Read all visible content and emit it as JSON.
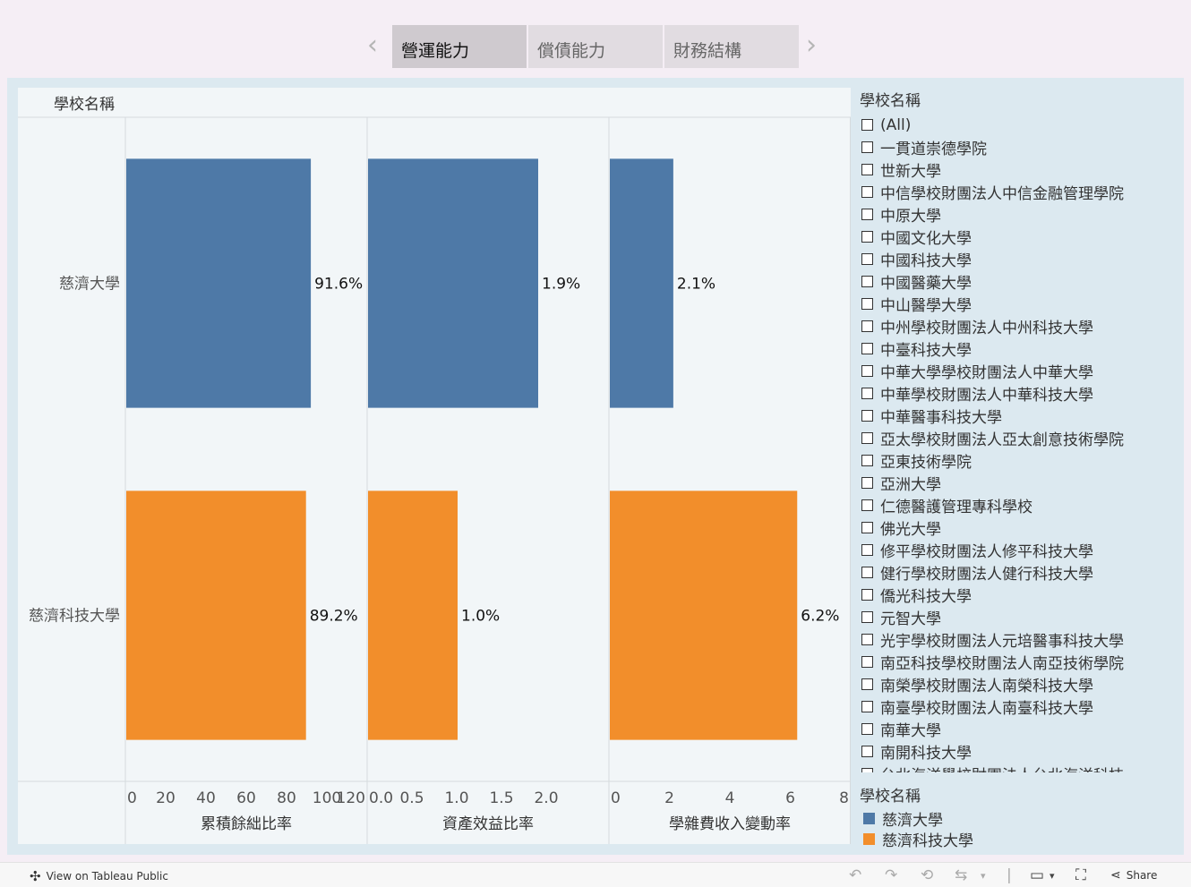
{
  "tabs": {
    "prev_icon": "chevron-left-icon",
    "next_icon": "chevron-right-icon",
    "items": [
      {
        "label": "營運能力",
        "active": true
      },
      {
        "label": "償債能力",
        "active": false
      },
      {
        "label": "財務結構",
        "active": false
      }
    ]
  },
  "chart_data": {
    "type": "bar",
    "orientation": "horizontal",
    "row_header": "學校名稱",
    "categories": [
      "慈濟大學",
      "慈濟科技大學"
    ],
    "colors": {
      "慈濟大學": "#4e79a7",
      "慈濟科技大學": "#f28e2b"
    },
    "panels": [
      {
        "xlabel": "累積餘絀比率",
        "xlim": [
          0,
          120
        ],
        "ticks": [
          "0",
          "20",
          "40",
          "60",
          "80",
          "100",
          "120"
        ],
        "values": [
          91.6,
          89.2
        ],
        "labels": [
          "91.6%",
          "89.2%"
        ]
      },
      {
        "xlabel": "資產效益比率",
        "xlim": [
          0,
          2.7
        ],
        "ticks": [
          "0.0",
          "0.5",
          "1.0",
          "1.5",
          "2.0"
        ],
        "values": [
          1.9,
          1.0
        ],
        "labels": [
          "1.9%",
          "1.0%"
        ]
      },
      {
        "xlabel": "學雜費收入變動率",
        "xlim": [
          0,
          8
        ],
        "ticks": [
          "0",
          "2",
          "4",
          "6",
          "8"
        ],
        "values": [
          2.1,
          6.2
        ],
        "labels": [
          "2.1%",
          "6.2%"
        ]
      }
    ],
    "grid": false,
    "legend_position": "right"
  },
  "filter": {
    "title": "學校名稱",
    "items": [
      "(All)",
      "一貫道崇德學院",
      "世新大學",
      "中信學校財團法人中信金融管理學院",
      "中原大學",
      "中國文化大學",
      "中國科技大學",
      "中國醫藥大學",
      "中山醫學大學",
      "中州學校財團法人中州科技大學",
      "中臺科技大學",
      "中華大學學校財團法人中華大學",
      "中華學校財團法人中華科技大學",
      "中華醫事科技大學",
      "亞太學校財團法人亞太創意技術學院",
      "亞東技術學院",
      "亞洲大學",
      "仁德醫護管理專科學校",
      "佛光大學",
      "修平學校財團法人修平科技大學",
      "健行學校財團法人健行科技大學",
      "僑光科技大學",
      "元智大學",
      "光宇學校財團法人元培醫事科技大學",
      "南亞科技學校財團法人南亞技術學院",
      "南榮學校財團法人南榮科技大學",
      "南臺學校財團法人南臺科技大學",
      "南華大學",
      "南開科技大學",
      "台北海洋學校財團法人台北海洋科技"
    ]
  },
  "legend": {
    "title": "學校名稱",
    "items": [
      {
        "label": "慈濟大學",
        "color": "#4e79a7"
      },
      {
        "label": "慈濟科技大學",
        "color": "#f28e2b"
      }
    ]
  },
  "toolbar": {
    "view_label": "View on Tableau Public",
    "share_label": "Share",
    "icons": [
      "undo-icon",
      "redo-icon",
      "revert-icon",
      "refresh-icon",
      "present-icon",
      "fullscreen-icon",
      "share-icon"
    ]
  }
}
